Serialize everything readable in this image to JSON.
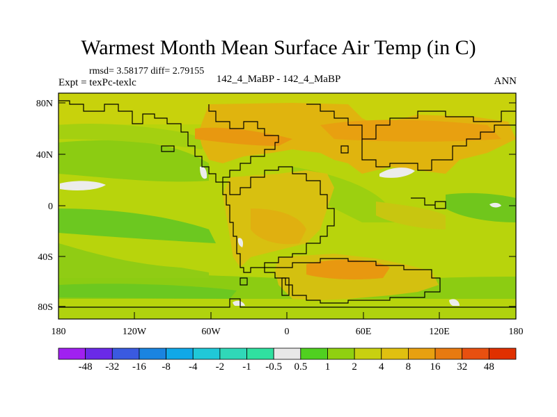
{
  "title": "Warmest Month Mean Surface Air Temp (in C)",
  "stats": "rmsd= 3.58177 diff= 2.79155",
  "expt_label": "Expt = texPc-texlc",
  "case_label": "142_4_MaBP - 142_4_MaBP",
  "season_label": "ANN",
  "axes": {
    "lat_labels": [
      "80N",
      "40N",
      "0",
      "40S",
      "80S"
    ],
    "lon_labels": [
      "180",
      "120W",
      "60W",
      "0",
      "60E",
      "120E",
      "180"
    ]
  },
  "colorbar": {
    "labels": [
      "-48",
      "-32",
      "-16",
      "-8",
      "-4",
      "-2",
      "-1",
      "-0.5",
      "0.5",
      "1",
      "2",
      "4",
      "8",
      "16",
      "32",
      "48"
    ],
    "colors": [
      "#a020f0",
      "#6a2ae8",
      "#3a5ae0",
      "#1a84e0",
      "#10a8e8",
      "#20c8d8",
      "#30d8b8",
      "#30e0a0",
      "#e8e8e8",
      "#50d020",
      "#90d010",
      "#c8d010",
      "#e0c010",
      "#e8a010",
      "#e87a10",
      "#e85010",
      "#e03000"
    ]
  }
}
